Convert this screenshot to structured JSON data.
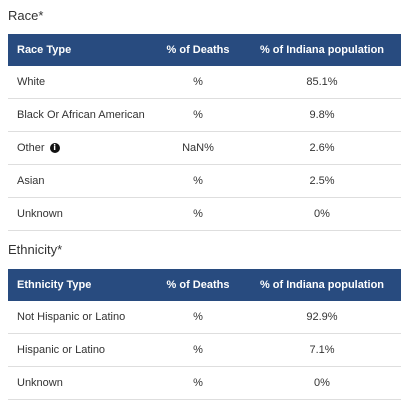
{
  "race": {
    "title": "Race*",
    "headers": [
      "Race Type",
      "% of Deaths",
      "% of Indiana population"
    ],
    "rows": [
      {
        "type": "White",
        "deaths": "%",
        "population": "85.1%"
      },
      {
        "type": "Black Or African American",
        "deaths": "%",
        "population": "9.8%"
      },
      {
        "type": "Other",
        "deaths": "NaN%",
        "population": "2.6%",
        "icon": "info-icon"
      },
      {
        "type": "Asian",
        "deaths": "%",
        "population": "2.5%"
      },
      {
        "type": "Unknown",
        "deaths": "%",
        "population": "0%"
      }
    ]
  },
  "ethnicity": {
    "title": "Ethnicity*",
    "headers": [
      "Ethnicity Type",
      "% of Deaths",
      "% of Indiana population"
    ],
    "rows": [
      {
        "type": "Not Hispanic or Latino",
        "deaths": "%",
        "population": "92.9%"
      },
      {
        "type": "Hispanic or Latino",
        "deaths": "%",
        "population": "7.1%"
      },
      {
        "type": "Unknown",
        "deaths": "%",
        "population": "0%"
      }
    ]
  },
  "colors": {
    "header_bg": "#284b7f",
    "header_text": "#ffffff",
    "row_border": "#dedede"
  }
}
